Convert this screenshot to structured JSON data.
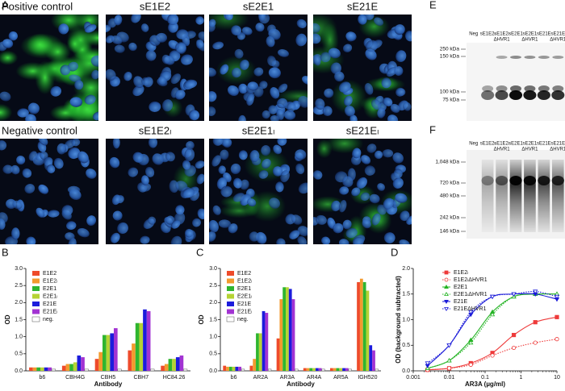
{
  "panel_labels": [
    "A",
    "B",
    "C",
    "D",
    "E",
    "F"
  ],
  "microscopy": [
    {
      "title": "Positive control"
    },
    {
      "title": "sE1E2"
    },
    {
      "title": "sE2E1"
    },
    {
      "title": "sE21E"
    },
    {
      "title": "Negative control"
    },
    {
      "title": "sE1E2ₗ"
    },
    {
      "title": "sE2E1ₗ"
    },
    {
      "title": "sE21Eₗ"
    }
  ],
  "blots": [
    {
      "lanes": [
        {
          "name": "Neg"
        },
        {
          "name": "sE1E2ₗ"
        },
        {
          "name": "sE1E2ₗ",
          "modifier": "ΔHVR1"
        },
        {
          "name": "sE2E1"
        },
        {
          "name": "sE2E1",
          "modifier": "ΔHVR1"
        },
        {
          "name": "sE21E"
        },
        {
          "name": "sE21E",
          "modifier": "ΔHVR1"
        }
      ],
      "markers": [
        "250 kDa",
        "150 kDa",
        "100 kDa",
        "75 kDa"
      ]
    },
    {
      "lanes": [
        {
          "name": "Neg"
        },
        {
          "name": "sE1E2ₗ"
        },
        {
          "name": "sE1E2ₗ",
          "modifier": "ΔHVR1"
        },
        {
          "name": "sE2E1"
        },
        {
          "name": "sE2E1",
          "modifier": "ΔHVR1"
        },
        {
          "name": "sE21E"
        },
        {
          "name": "sE21E",
          "modifier": "ΔHVR1"
        }
      ],
      "markers": [
        "1,048 kDa",
        "720 kDa",
        "480 kDa",
        "242 kDa",
        "146 kDa"
      ]
    }
  ],
  "chart_data": [
    {
      "type": "bar",
      "xlabel": "Antibody",
      "ylabel": "OD",
      "categories": [
        "b6",
        "CBH4G",
        "CBH5",
        "CBH7",
        "HC84.26"
      ],
      "ylim": [
        0,
        3.0
      ],
      "yticks": [
        {
          "value": 0,
          "label": "0.0"
        },
        {
          "value": 0.5,
          "label": "0.5"
        },
        {
          "value": 1.0,
          "label": "1.0"
        },
        {
          "value": 1.5,
          "label": "1.5"
        },
        {
          "value": 2.0,
          "label": "2.0"
        },
        {
          "value": 2.5,
          "label": "2.5"
        },
        {
          "value": 3.0,
          "label": "3.0"
        }
      ],
      "series": [
        {
          "name": "E1E2",
          "color": "#ee4b2b",
          "values": [
            0.1,
            0.15,
            0.35,
            0.6,
            0.15
          ]
        },
        {
          "name": "E1E2ₗ",
          "color": "#f39a2e",
          "values": [
            0.1,
            0.2,
            0.55,
            0.8,
            0.2
          ]
        },
        {
          "name": "E2E1",
          "color": "#2fb52f",
          "values": [
            0.1,
            0.2,
            1.05,
            1.4,
            0.35
          ]
        },
        {
          "name": "E2E1ₗ",
          "color": "#b5d334",
          "values": [
            0.1,
            0.25,
            1.05,
            1.4,
            0.35
          ]
        },
        {
          "name": "E21E",
          "color": "#1c1cdc",
          "values": [
            0.1,
            0.45,
            1.1,
            1.8,
            0.4
          ]
        },
        {
          "name": "E21Eₗ",
          "color": "#a233d2",
          "values": [
            0.1,
            0.4,
            1.25,
            1.75,
            0.45
          ]
        },
        {
          "name": "neg.",
          "color": "#ffffff",
          "values": [
            0.05,
            0.05,
            0.05,
            0.05,
            0.05
          ]
        }
      ]
    },
    {
      "type": "bar",
      "xlabel": "Antibody",
      "ylabel": "OD",
      "categories": [
        "b6",
        "AR2A",
        "AR3A",
        "AR4A",
        "AR5A",
        "IGH520"
      ],
      "ylim": [
        0,
        3.0
      ],
      "yticks": [
        {
          "value": 0,
          "label": "0.0"
        },
        {
          "value": 0.5,
          "label": "0.5"
        },
        {
          "value": 1.0,
          "label": "1.0"
        },
        {
          "value": 1.5,
          "label": "1.5"
        },
        {
          "value": 2.0,
          "label": "2.0"
        },
        {
          "value": 2.5,
          "label": "2.5"
        },
        {
          "value": 3.0,
          "label": "3.0"
        }
      ],
      "series": [
        {
          "name": "E1E2",
          "color": "#ee4b2b",
          "values": [
            0.15,
            0.15,
            0.95,
            0.08,
            0.08,
            2.6
          ]
        },
        {
          "name": "E1E2ₗ",
          "color": "#f39a2e",
          "values": [
            0.12,
            0.35,
            2.1,
            0.08,
            0.08,
            2.7
          ]
        },
        {
          "name": "E2E1",
          "color": "#2fb52f",
          "values": [
            0.12,
            1.1,
            2.45,
            0.08,
            0.08,
            2.6
          ]
        },
        {
          "name": "E2E1ₗ",
          "color": "#b5d334",
          "values": [
            0.12,
            1.1,
            2.45,
            0.08,
            0.08,
            2.35
          ]
        },
        {
          "name": "E21E",
          "color": "#1c1cdc",
          "values": [
            0.12,
            1.75,
            2.4,
            0.08,
            0.08,
            0.75
          ]
        },
        {
          "name": "E21Eₗ",
          "color": "#a233d2",
          "values": [
            0.12,
            1.7,
            2.1,
            0.08,
            0.08,
            0.6
          ]
        },
        {
          "name": "neg.",
          "color": "#ffffff",
          "values": [
            0.05,
            0.05,
            0.05,
            0.05,
            0.05,
            0.05
          ]
        }
      ]
    },
    {
      "type": "line",
      "xlabel": "AR3A (µg/ml)",
      "ylabel": "OD (background subtracted)",
      "log_x": true,
      "x": [
        0.0025,
        0.01,
        0.04,
        0.16,
        0.63,
        2.5,
        10
      ],
      "xlim": [
        0.001,
        10
      ],
      "xticks": [
        0.001,
        0.01,
        0.1,
        1,
        10
      ],
      "ylim": [
        0,
        2.0
      ],
      "yticks": [
        {
          "value": 0,
          "label": "0.0"
        },
        {
          "value": 0.5,
          "label": "0.5"
        },
        {
          "value": 1.0,
          "label": "1.0"
        },
        {
          "value": 1.5,
          "label": "1.5"
        },
        {
          "value": 2.0,
          "label": "2.0"
        }
      ],
      "series": [
        {
          "name": "E1E2ₗ",
          "color": "#ee3b3b",
          "marker": "square",
          "filled": true,
          "line_style": "solid",
          "values": [
            0.02,
            0.05,
            0.15,
            0.35,
            0.7,
            0.95,
            1.05
          ]
        },
        {
          "name": "E1E2ₗΔHVR1",
          "color": "#ee3b3b",
          "marker": "circle",
          "filled": false,
          "line_style": "dotted",
          "values": [
            0.02,
            0.05,
            0.12,
            0.3,
            0.45,
            0.55,
            0.62
          ]
        },
        {
          "name": "E2E1",
          "color": "#22b322",
          "marker": "triangle",
          "filled": true,
          "line_style": "solid",
          "values": [
            0.05,
            0.2,
            0.6,
            1.15,
            1.45,
            1.5,
            1.5
          ]
        },
        {
          "name": "E2E1ₗΔHVR1",
          "color": "#22b322",
          "marker": "triangle",
          "filled": false,
          "line_style": "dotted",
          "values": [
            0.05,
            0.2,
            0.55,
            1.1,
            1.45,
            1.5,
            1.5
          ]
        },
        {
          "name": "E21E",
          "color": "#1a1ad8",
          "marker": "triangle-down",
          "filled": true,
          "line_style": "solid",
          "values": [
            0.1,
            0.5,
            1.1,
            1.45,
            1.5,
            1.5,
            1.4
          ]
        },
        {
          "name": "E21EΔHVR1",
          "color": "#1a1ad8",
          "marker": "triangle-down",
          "filled": false,
          "line_style": "dotted",
          "values": [
            0.15,
            0.5,
            1.15,
            1.45,
            1.5,
            1.55,
            1.45
          ]
        }
      ]
    }
  ]
}
